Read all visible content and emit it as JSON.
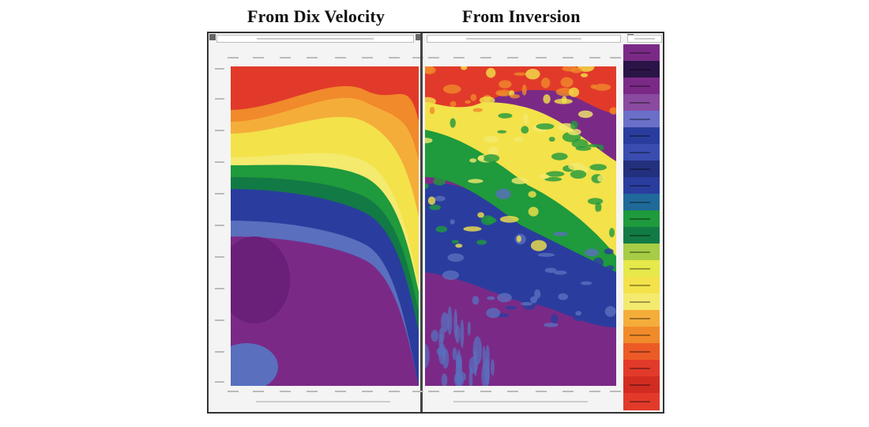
{
  "titles": {
    "left": "From Dix Velocity",
    "right": "From Inversion"
  },
  "colors": {
    "red": "#e23a2a",
    "orange_red": "#ec5a26",
    "orange": "#f08a2a",
    "orange_light": "#f5ad3a",
    "yellow": "#f3e24a",
    "yellow_light": "#f4ea6e",
    "green": "#1f9a3c",
    "green_dark": "#127a45",
    "blue": "#2a3d9e",
    "blue_light": "#5a6fbe",
    "purple": "#7a2a86",
    "purple_dark": "#6a1f78"
  },
  "colorbar": [
    "#7a2a86",
    "#2b1548",
    "#7a2a86",
    "#8a4aa0",
    "#6a6fc8",
    "#2a3d9e",
    "#3a4cb0",
    "#22307e",
    "#2a3d9e",
    "#1f6a9a",
    "#1f9a3c",
    "#127a45",
    "#a7cc45",
    "#e7e84a",
    "#f3e24a",
    "#f4ea6e",
    "#f5ad3a",
    "#f08a2a",
    "#ec5a26",
    "#e23a2a",
    "#d22c22",
    "#e23a2a"
  ]
}
